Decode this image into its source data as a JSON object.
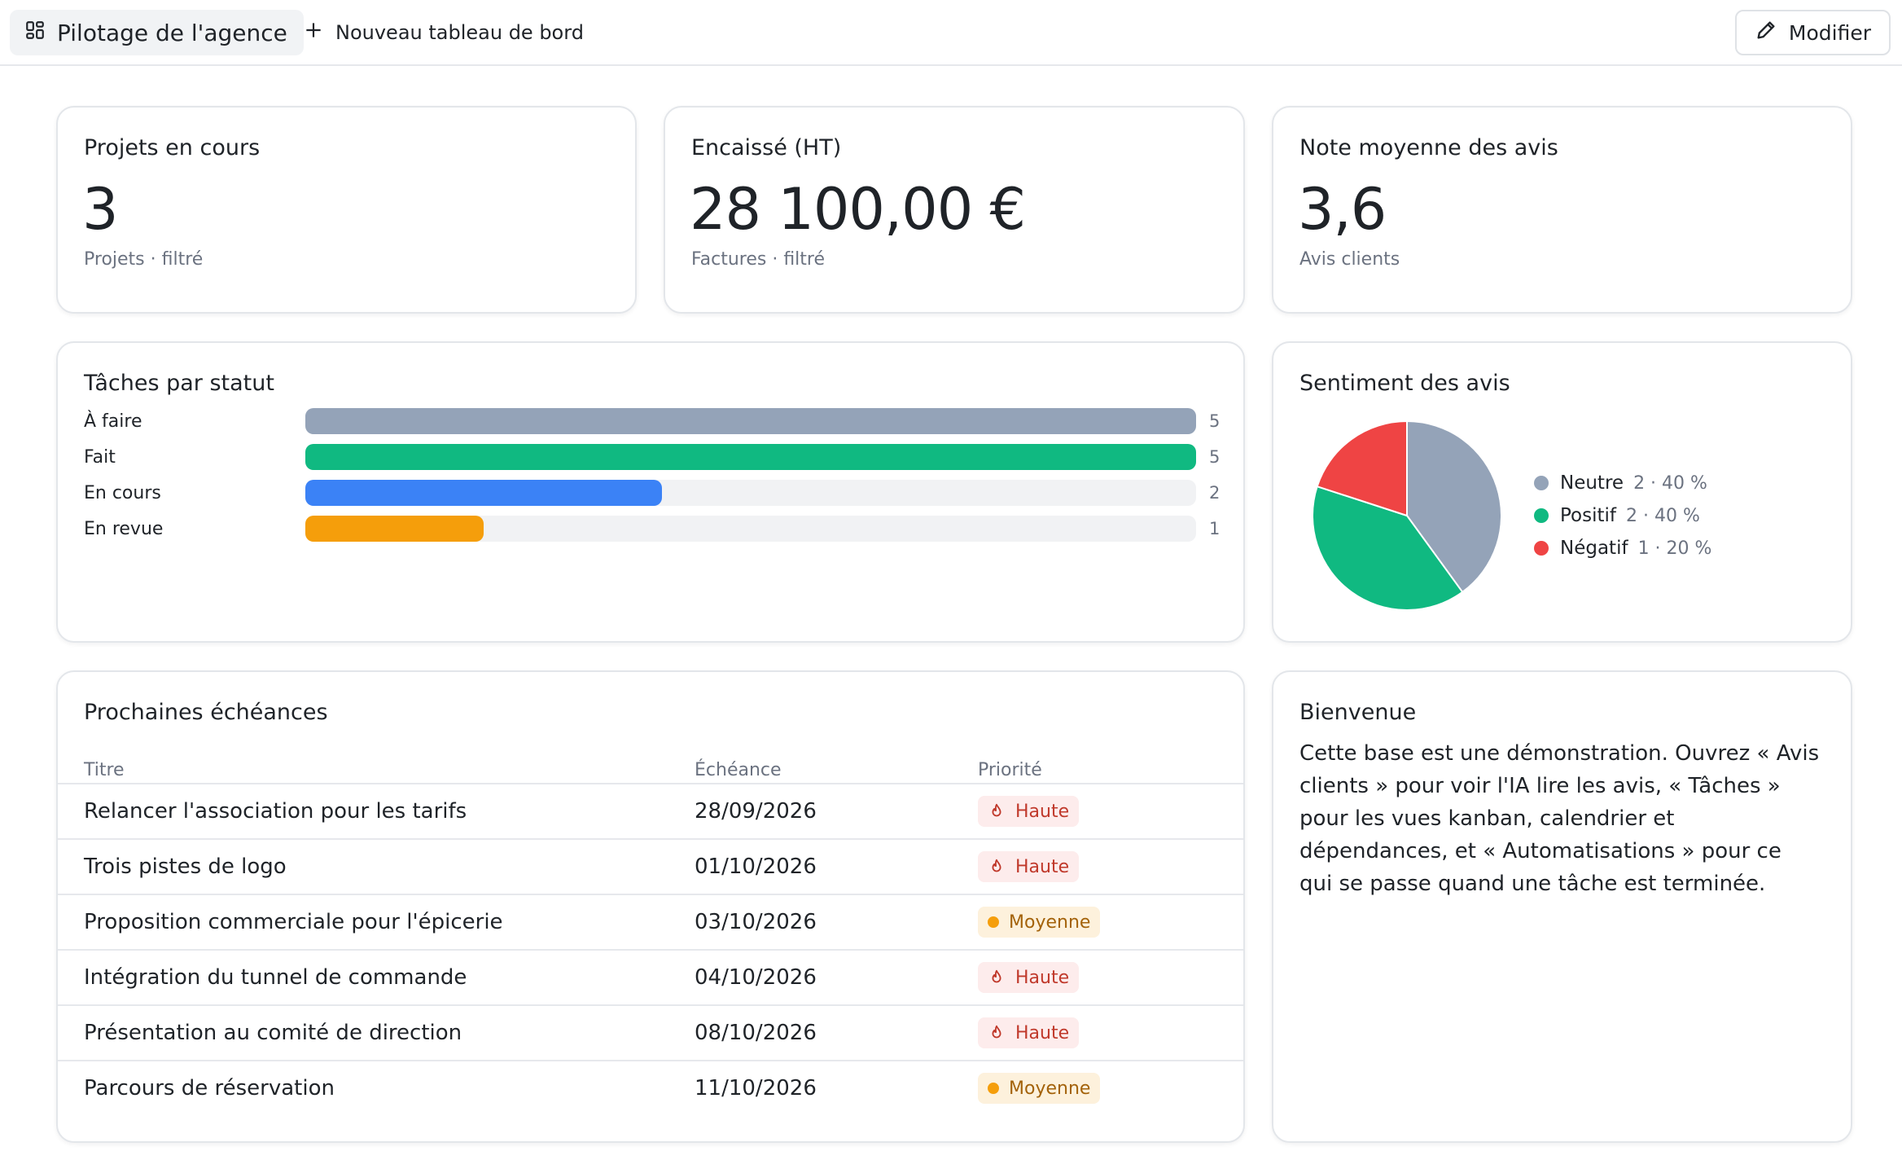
{
  "topbar": {
    "active_tab_label": "Pilotage de l'agence",
    "new_dashboard_label": "Nouveau tableau de bord",
    "edit_label": "Modifier"
  },
  "kpis": [
    {
      "title": "Projets en cours",
      "value": "3",
      "sub": "Projets · filtré"
    },
    {
      "title": "Encaissé (HT)",
      "value": "28 100,00 €",
      "sub": "Factures · filtré"
    },
    {
      "title": "Note moyenne des avis",
      "value": "3,6",
      "sub": "Avis clients"
    }
  ],
  "tasks_chart": {
    "title": "Tâches par statut",
    "chart_data": {
      "type": "bar",
      "orientation": "horizontal",
      "categories": [
        "À faire",
        "Fait",
        "En cours",
        "En revue"
      ],
      "values": [
        5,
        5,
        2,
        1
      ],
      "xlim": [
        0,
        5
      ],
      "colors": [
        "#94a3b8",
        "#10b981",
        "#3b82f6",
        "#f59e0b"
      ]
    }
  },
  "sentiment_chart": {
    "title": "Sentiment des avis",
    "chart_data": {
      "type": "pie",
      "slices": [
        {
          "label": "Neutre",
          "count": 2,
          "percent": 40,
          "color": "#94a3b8",
          "meta": "2 · 40 %"
        },
        {
          "label": "Positif",
          "count": 2,
          "percent": 40,
          "color": "#10b981",
          "meta": "2 · 40 %"
        },
        {
          "label": "Négatif",
          "count": 1,
          "percent": 20,
          "color": "#ef4444",
          "meta": "1 · 20 %"
        }
      ],
      "legend_position": "right"
    }
  },
  "deadlines": {
    "title": "Prochaines échéances",
    "columns": [
      "Titre",
      "Échéance",
      "Priorité"
    ],
    "rows": [
      {
        "title": "Relancer l'association pour les tarifs",
        "date": "28/09/2026",
        "priority": "Haute"
      },
      {
        "title": "Trois pistes de logo",
        "date": "01/10/2026",
        "priority": "Haute"
      },
      {
        "title": "Proposition commerciale pour l'épicerie",
        "date": "03/10/2026",
        "priority": "Moyenne"
      },
      {
        "title": "Intégration du tunnel de commande",
        "date": "04/10/2026",
        "priority": "Haute"
      },
      {
        "title": "Présentation au comité de direction",
        "date": "08/10/2026",
        "priority": "Haute"
      },
      {
        "title": "Parcours de réservation",
        "date": "11/10/2026",
        "priority": "Moyenne"
      }
    ]
  },
  "welcome": {
    "title": "Bienvenue",
    "text": "Cette base est une démonstration. Ouvrez « Avis clients » pour voir l'IA lire les avis, « Tâches » pour les vues kanban, calendrier et dépendances, et « Automatisations » pour ce qui se passe quand une tâche est terminée."
  }
}
